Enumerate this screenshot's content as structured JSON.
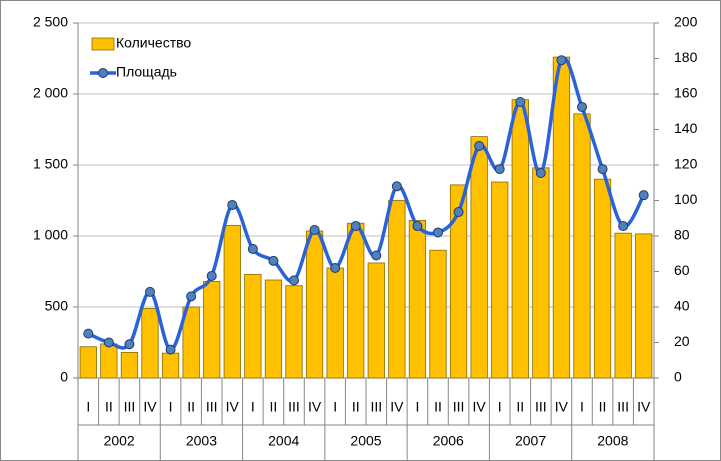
{
  "chart_data": {
    "type": "combo",
    "categories": [
      "I",
      "II",
      "III",
      "IV",
      "I",
      "II",
      "III",
      "IV",
      "I",
      "II",
      "III",
      "IV",
      "I",
      "II",
      "III",
      "IV",
      "I",
      "II",
      "III",
      "IV",
      "I",
      "II",
      "III",
      "IV",
      "I",
      "II",
      "III",
      "IV"
    ],
    "groups": [
      "2002",
      "2003",
      "2004",
      "2005",
      "2006",
      "2007",
      "2008"
    ],
    "series": [
      {
        "name": "Количество",
        "type": "bar",
        "color": "#ffc000",
        "values": [
          220,
          240,
          180,
          490,
          175,
          500,
          680,
          1075,
          730,
          690,
          650,
          1035,
          775,
          1090,
          810,
          1250,
          1110,
          900,
          1360,
          1700,
          1380,
          1960,
          1480,
          2260,
          1860,
          1400,
          1020,
          1015
        ]
      },
      {
        "name": "Площадь",
        "type": "line",
        "axis": "y2",
        "color": "#2a62d8",
        "values": [
          25,
          20,
          19,
          48.5,
          16,
          46,
          57.5,
          97.5,
          72.7,
          66,
          55,
          83.4,
          62,
          85.6,
          69,
          108,
          85.6,
          82,
          93.5,
          130.7,
          117.7,
          155.5,
          115.5,
          179,
          152.7,
          117.7,
          85.6,
          103
        ]
      }
    ],
    "ylim": [
      0,
      2500
    ],
    "yticks": [
      0,
      500,
      {
        "value": 1000,
        "label": "1 000"
      },
      {
        "value": 1500,
        "label": "1 500"
      },
      {
        "value": 2000,
        "label": "2 000"
      },
      {
        "value": 2500,
        "label": "2 500"
      }
    ],
    "y2lim": [
      0,
      200
    ],
    "y2ticks": [
      0,
      20,
      40,
      60,
      80,
      100,
      120,
      140,
      160,
      180,
      200
    ],
    "grid": true,
    "legend": "top-left"
  }
}
